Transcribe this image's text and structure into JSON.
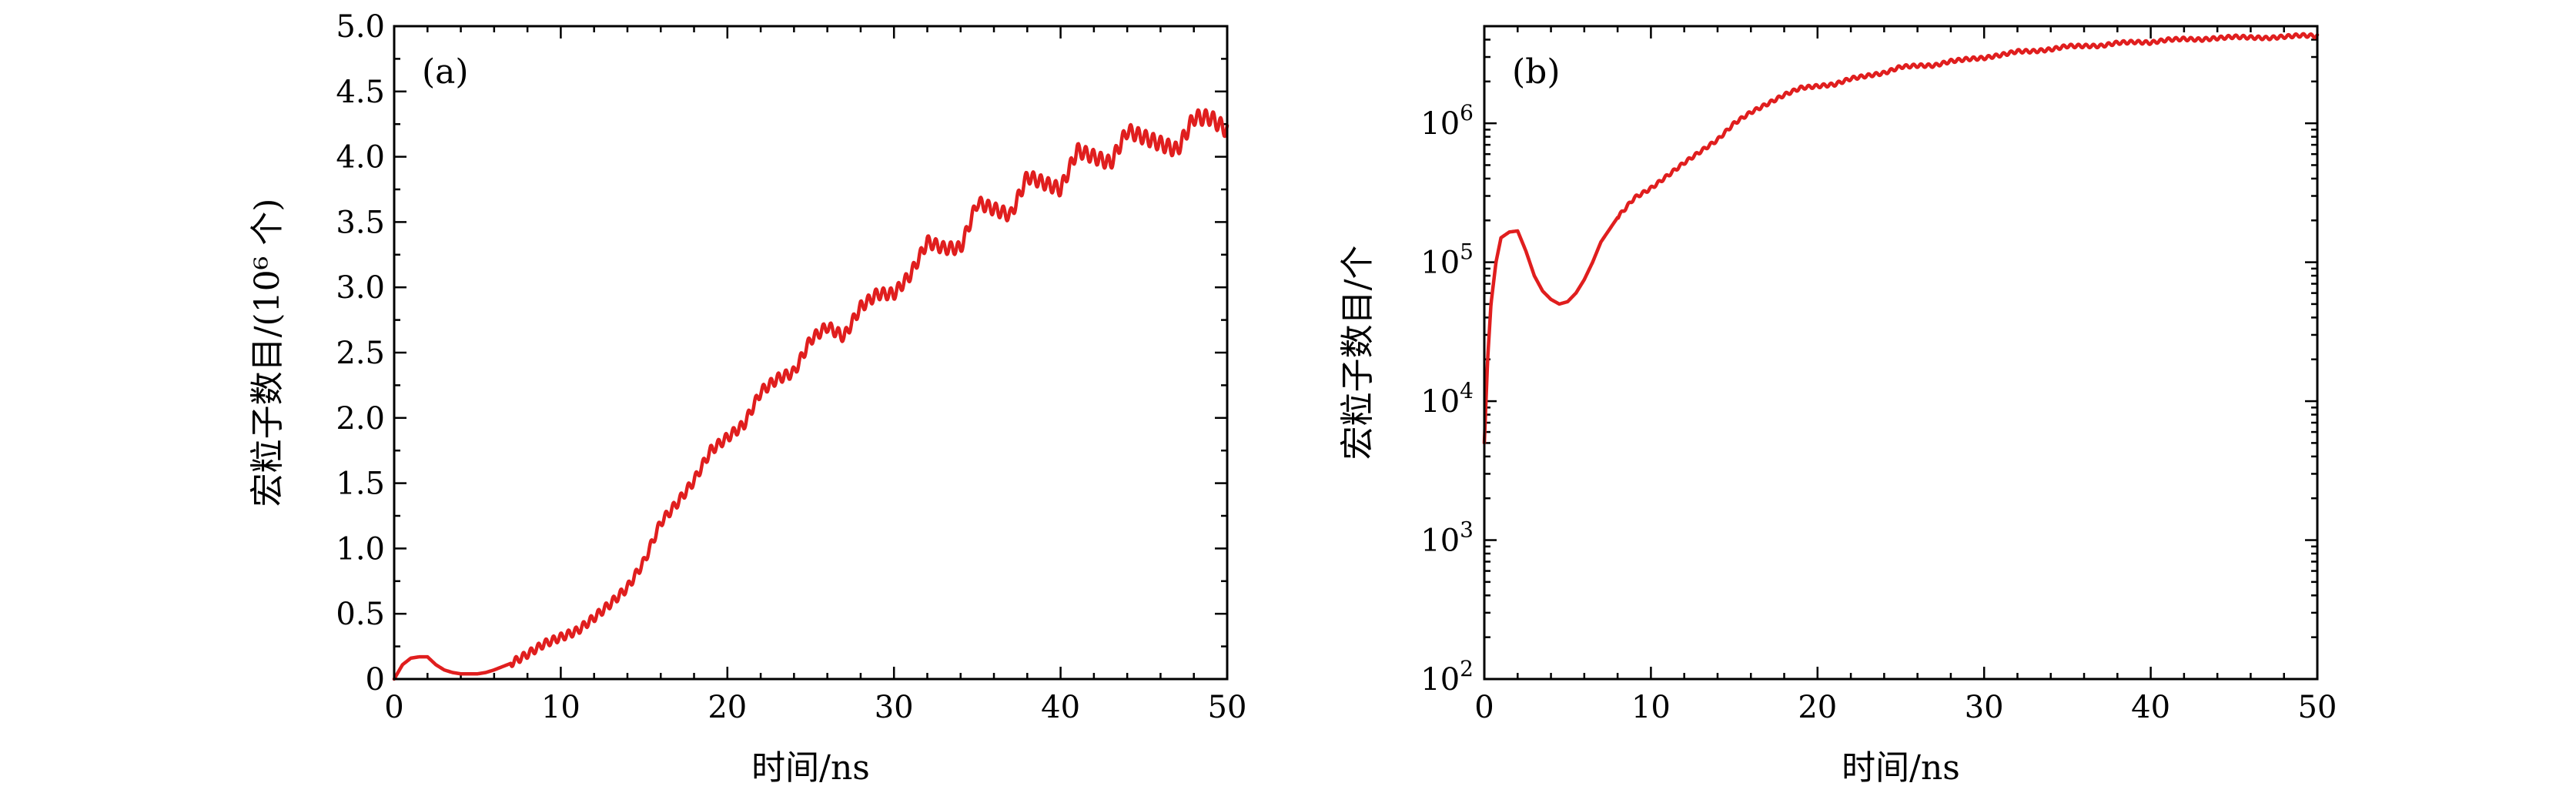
{
  "chart_data": [
    {
      "type": "line",
      "panel_label": "(a)",
      "xlabel": "时间/ns",
      "ylabel": "宏粒子数目/(10⁶ 个)",
      "xlim": [
        0,
        50
      ],
      "ylim": [
        0,
        5.0
      ],
      "xticks": [
        "0",
        "10",
        "20",
        "30",
        "40",
        "50"
      ],
      "yticks": [
        "0",
        "0.5",
        "1.0",
        "1.5",
        "2.0",
        "2.5",
        "3.0",
        "3.5",
        "4.0",
        "4.5",
        "5.0"
      ],
      "grid": false,
      "series": [
        {
          "color": "#e01e1e",
          "oscillation_amplitude": 0.06,
          "x": [
            0,
            0.5,
            1,
            1.5,
            2,
            2.5,
            3,
            3.5,
            4,
            4.5,
            5,
            5.5,
            6,
            7,
            8,
            9,
            10,
            11,
            12,
            13,
            14,
            15,
            16,
            17,
            18,
            19,
            20,
            21,
            22,
            23,
            24,
            25,
            26,
            27,
            28,
            29,
            30,
            31,
            32,
            33,
            34,
            35,
            36,
            37,
            38,
            39,
            40,
            41,
            42,
            43,
            44,
            45,
            46,
            47,
            48,
            49,
            50
          ],
          "y": [
            0.0,
            0.11,
            0.16,
            0.17,
            0.17,
            0.11,
            0.07,
            0.05,
            0.04,
            0.04,
            0.04,
            0.05,
            0.07,
            0.12,
            0.19,
            0.27,
            0.32,
            0.37,
            0.47,
            0.58,
            0.7,
            0.9,
            1.2,
            1.35,
            1.52,
            1.75,
            1.85,
            1.95,
            2.2,
            2.3,
            2.35,
            2.6,
            2.7,
            2.62,
            2.85,
            2.95,
            2.95,
            3.1,
            3.35,
            3.3,
            3.3,
            3.65,
            3.6,
            3.55,
            3.85,
            3.8,
            3.75,
            4.05,
            4.0,
            3.95,
            4.2,
            4.15,
            4.1,
            4.05,
            4.3,
            4.3,
            4.2
          ]
        }
      ]
    },
    {
      "type": "line",
      "panel_label": "(b)",
      "xlabel": "时间/ns",
      "ylabel": "宏粒子数目/个",
      "xlim": [
        0,
        50
      ],
      "ylim": [
        100,
        5000000
      ],
      "yscale": "log",
      "xticks": [
        "0",
        "10",
        "20",
        "30",
        "40",
        "50"
      ],
      "yticks": [
        {
          "value": 100,
          "base": "10",
          "exp": "2"
        },
        {
          "value": 1000,
          "base": "10",
          "exp": "3"
        },
        {
          "value": 10000,
          "base": "10",
          "exp": "4"
        },
        {
          "value": 100000,
          "base": "10",
          "exp": "5"
        },
        {
          "value": 1000000,
          "base": "10",
          "exp": "6"
        }
      ],
      "grid": false,
      "series": [
        {
          "color": "#e01e1e",
          "oscillation_amplitude": 0.012,
          "x": [
            0,
            0.2,
            0.4,
            0.7,
            1,
            1.5,
            2,
            2.5,
            3,
            3.5,
            4,
            4.5,
            5,
            5.5,
            6,
            6.5,
            7,
            8,
            9,
            10,
            11,
            12,
            13,
            14,
            15,
            16,
            17,
            18,
            19,
            20,
            21,
            22,
            23,
            24,
            25,
            26,
            27,
            28,
            29,
            30,
            31,
            32,
            33,
            34,
            35,
            36,
            37,
            38,
            39,
            40,
            41,
            42,
            43,
            44,
            45,
            46,
            47,
            48,
            49,
            50
          ],
          "y": [
            5000,
            20000,
            50000,
            100000,
            150000,
            165000,
            168000,
            120000,
            80000,
            62000,
            54000,
            50000,
            52000,
            60000,
            75000,
            100000,
            140000,
            210000,
            290000,
            340000,
            420000,
            520000,
            630000,
            760000,
            1000000,
            1200000,
            1380000,
            1600000,
            1800000,
            1850000,
            1900000,
            2100000,
            2200000,
            2300000,
            2550000,
            2600000,
            2600000,
            2800000,
            2900000,
            2950000,
            3100000,
            3300000,
            3300000,
            3400000,
            3600000,
            3600000,
            3600000,
            3800000,
            3850000,
            3800000,
            4000000,
            4050000,
            4000000,
            4100000,
            4200000,
            4150000,
            4100000,
            4200000,
            4300000,
            4250000
          ]
        }
      ]
    }
  ]
}
